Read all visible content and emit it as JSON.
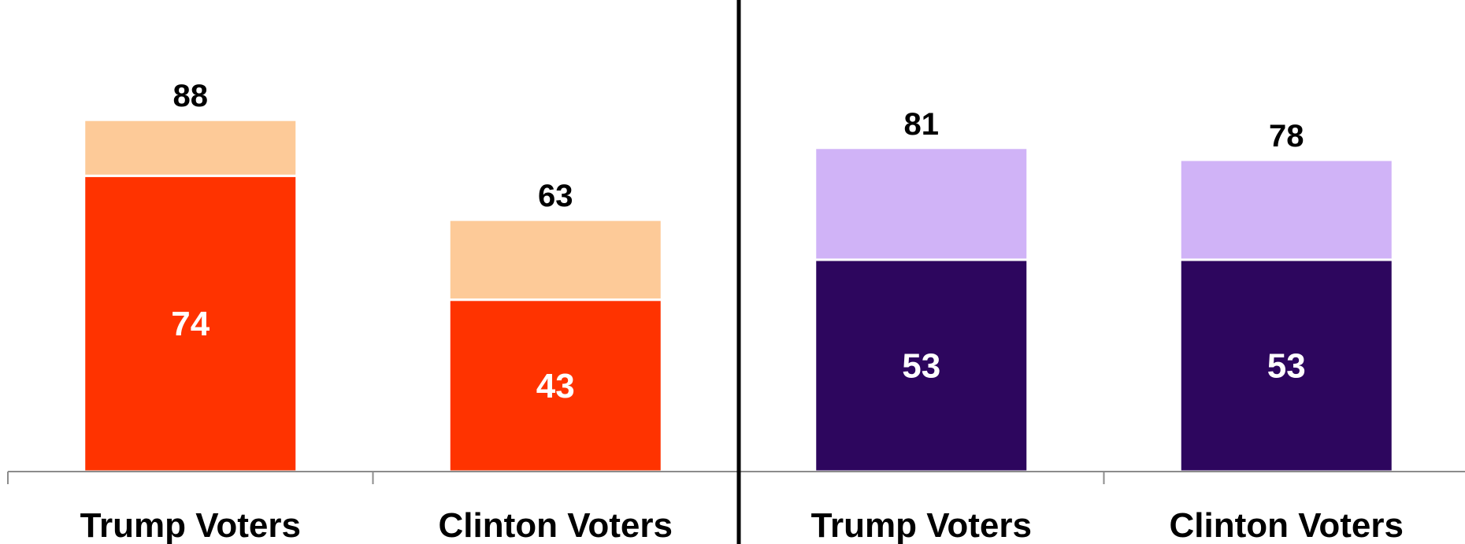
{
  "chart_data": {
    "type": "bar",
    "stacked": true,
    "panels": [
      {
        "categories": [
          "Trump Voters",
          "Clinton Voters"
        ],
        "series": [
          {
            "values": [
              74,
              43
            ],
            "color": "#ff3300"
          },
          {
            "values": [
              14,
              20
            ],
            "color": "#fdca98"
          }
        ],
        "totals": [
          88,
          63
        ],
        "labels": {
          "inner": [
            "74",
            "43"
          ],
          "total": [
            "88",
            "63"
          ]
        }
      },
      {
        "categories": [
          "Trump Voters",
          "Clinton Voters"
        ],
        "series": [
          {
            "values": [
              53,
              53
            ],
            "color": "#2d065e"
          },
          {
            "values": [
              28,
              25
            ],
            "color": "#d0b3f7"
          }
        ],
        "totals": [
          81,
          78
        ],
        "labels": {
          "inner": [
            "53",
            "53"
          ],
          "total": [
            "81",
            "78"
          ]
        }
      }
    ],
    "ylim": [
      0,
      100
    ],
    "title": "",
    "xlabel": "",
    "ylabel": ""
  }
}
